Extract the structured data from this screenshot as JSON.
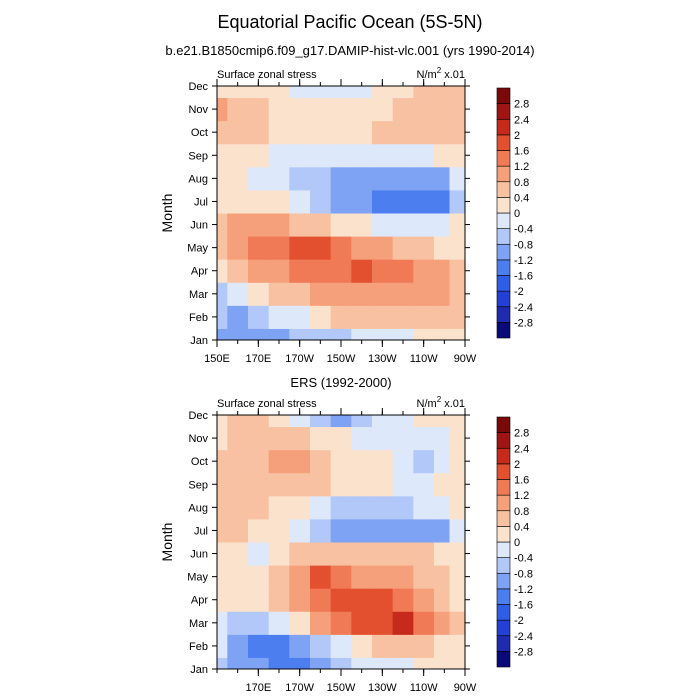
{
  "title": "Equatorial Pacific Ocean (5S-5N)",
  "subtitle": "b.e21.B1850cmip6.f09_g17.DAMIP-hist-vlc.001 (yrs 1990-2014)",
  "chart_data": [
    {
      "type": "heatmap",
      "panel_title": "",
      "left_label": "Surface zonal stress",
      "units_label": "N/m² x.01",
      "ylabel": "Month",
      "xlabel": "",
      "y_ticks": [
        "Jan",
        "Feb",
        "Mar",
        "Apr",
        "May",
        "Jun",
        "Jul",
        "Aug",
        "Sep",
        "Oct",
        "Nov",
        "Dec"
      ],
      "x_ticks": [
        "150E",
        "170E",
        "170W",
        "150W",
        "130W",
        "110W",
        "90W"
      ],
      "x_range_deg_east": [
        150,
        270
      ],
      "levels": [
        -2.8,
        -2.4,
        -2,
        -1.6,
        -1.2,
        -0.8,
        -0.4,
        0,
        0.4,
        0.8,
        1.2,
        1.6,
        2,
        2.4,
        2.8
      ],
      "x": [
        150,
        160,
        170,
        180,
        190,
        200,
        210,
        220,
        230,
        240,
        250,
        260,
        265
      ],
      "values": [
        [
          -1.0,
          -1.1,
          -1.0,
          -0.9,
          -0.8,
          -0.6,
          -0.5,
          -0.3,
          -0.2,
          -0.1,
          0.0,
          0.1,
          0.1
        ],
        [
          -0.8,
          -0.9,
          -0.8,
          -0.4,
          -0.1,
          0.2,
          0.4,
          0.6,
          0.7,
          0.7,
          0.6,
          0.5,
          0.4
        ],
        [
          -0.5,
          -0.4,
          0.1,
          0.4,
          0.6,
          0.8,
          0.9,
          1.0,
          1.1,
          1.1,
          1.0,
          0.9,
          0.7
        ],
        [
          0.1,
          0.5,
          0.8,
          1.0,
          1.2,
          1.3,
          1.5,
          1.6,
          1.5,
          1.2,
          1.0,
          0.8,
          0.5
        ],
        [
          0.5,
          0.8,
          1.2,
          1.5,
          1.7,
          1.6,
          1.3,
          1.0,
          0.8,
          0.6,
          0.4,
          0.3,
          0.2
        ],
        [
          0.7,
          0.9,
          1.0,
          0.9,
          0.7,
          0.5,
          0.2,
          0.0,
          -0.1,
          -0.2,
          -0.2,
          -0.1,
          0.0
        ],
        [
          0.3,
          0.3,
          0.2,
          0.0,
          -0.3,
          -0.6,
          -0.9,
          -1.1,
          -1.3,
          -1.5,
          -1.5,
          -1.3,
          -0.6
        ],
        [
          0.1,
          0.0,
          -0.2,
          -0.3,
          -0.6,
          -0.8,
          -1.0,
          -1.0,
          -1.1,
          -1.0,
          -1.0,
          -0.9,
          -0.4
        ],
        [
          0.1,
          0.1,
          0.0,
          -0.1,
          -0.2,
          -0.3,
          -0.3,
          -0.2,
          -0.2,
          -0.1,
          -0.1,
          0.0,
          0.2
        ],
        [
          0.4,
          0.4,
          0.4,
          0.3,
          0.3,
          0.3,
          0.3,
          0.3,
          0.4,
          0.5,
          0.6,
          0.6,
          0.6
        ],
        [
          0.9,
          0.7,
          0.5,
          0.3,
          0.3,
          0.3,
          0.3,
          0.3,
          0.3,
          0.4,
          0.6,
          0.7,
          0.7
        ],
        [
          0.3,
          0.3,
          0.2,
          0.1,
          -0.1,
          -0.2,
          -0.2,
          -0.1,
          0.0,
          0.2,
          0.4,
          0.5,
          0.5
        ]
      ]
    },
    {
      "type": "heatmap",
      "panel_title": "ERS (1992-2000)",
      "left_label": "Surface zonal stress",
      "units_label": "N/m² x.01",
      "ylabel": "Month",
      "xlabel": "",
      "y_ticks": [
        "Jan",
        "Feb",
        "Mar",
        "Apr",
        "May",
        "Jun",
        "Jul",
        "Aug",
        "Sep",
        "Oct",
        "Nov",
        "Dec"
      ],
      "x_ticks": [
        "170E",
        "170W",
        "150W",
        "130W",
        "110W",
        "90W"
      ],
      "x_range_deg_east": [
        150,
        270
      ],
      "levels": [
        -2.8,
        -2.4,
        -2,
        -1.6,
        -1.2,
        -0.8,
        -0.4,
        0,
        0.4,
        0.8,
        1.2,
        1.6,
        2,
        2.4,
        2.8
      ],
      "x": [
        150,
        160,
        170,
        180,
        190,
        200,
        210,
        220,
        230,
        240,
        250,
        260,
        265
      ],
      "values": [
        [
          -0.6,
          -0.9,
          -1.2,
          -1.4,
          -1.3,
          -0.9,
          -0.5,
          -0.2,
          -0.1,
          -0.1,
          0.0,
          0.1,
          0.1
        ],
        [
          -0.4,
          -0.9,
          -1.4,
          -1.5,
          -1.2,
          -0.7,
          -0.1,
          0.3,
          0.5,
          0.5,
          0.4,
          0.3,
          0.2
        ],
        [
          -0.2,
          -0.5,
          -0.6,
          -0.2,
          0.3,
          0.8,
          1.3,
          1.6,
          1.9,
          2.0,
          1.5,
          0.9,
          0.4
        ],
        [
          0.1,
          0.2,
          0.1,
          0.4,
          0.9,
          1.4,
          1.8,
          1.9,
          1.7,
          1.4,
          1.0,
          0.6,
          0.3
        ],
        [
          0.3,
          0.3,
          0.1,
          0.5,
          1.0,
          1.6,
          1.5,
          1.1,
          0.9,
          0.8,
          0.6,
          0.5,
          0.3
        ],
        [
          0.2,
          0.1,
          -0.1,
          0.2,
          0.5,
          0.7,
          0.6,
          0.5,
          0.4,
          0.5,
          0.4,
          0.3,
          0.2
        ],
        [
          0.4,
          0.4,
          0.3,
          0.1,
          -0.2,
          -0.6,
          -1.0,
          -1.1,
          -1.2,
          -1.0,
          -1.1,
          -0.9,
          -0.3
        ],
        [
          0.5,
          0.4,
          0.4,
          0.2,
          0.0,
          -0.4,
          -0.6,
          -0.7,
          -0.6,
          -0.5,
          -0.4,
          -0.2,
          0.0
        ],
        [
          0.6,
          0.5,
          0.5,
          0.6,
          0.7,
          0.5,
          0.3,
          0.1,
          0.0,
          -0.1,
          -0.1,
          0.0,
          0.2
        ],
        [
          0.5,
          0.6,
          0.6,
          0.8,
          0.8,
          0.6,
          0.3,
          0.2,
          0.1,
          -0.3,
          -0.5,
          -0.2,
          0.1
        ],
        [
          0.3,
          0.4,
          0.6,
          0.7,
          0.6,
          0.3,
          0.0,
          -0.2,
          -0.4,
          -0.4,
          -0.3,
          -0.1,
          0.2
        ],
        [
          0.2,
          0.6,
          0.4,
          0.2,
          -0.2,
          -0.8,
          -1.1,
          -0.7,
          -0.3,
          -0.1,
          0.0,
          0.2,
          0.3
        ]
      ]
    }
  ],
  "colorbar_colors": [
    "#0a0a7a",
    "#1e2ab0",
    "#2440d4",
    "#2f5de6",
    "#4d7ef0",
    "#7ea2f4",
    "#b1c8f8",
    "#dde8fb",
    "#fbe2cd",
    "#f8c2a2",
    "#f5a07a",
    "#f07a55",
    "#e2502f",
    "#c52a1a",
    "#a01414",
    "#7a0a0a"
  ]
}
